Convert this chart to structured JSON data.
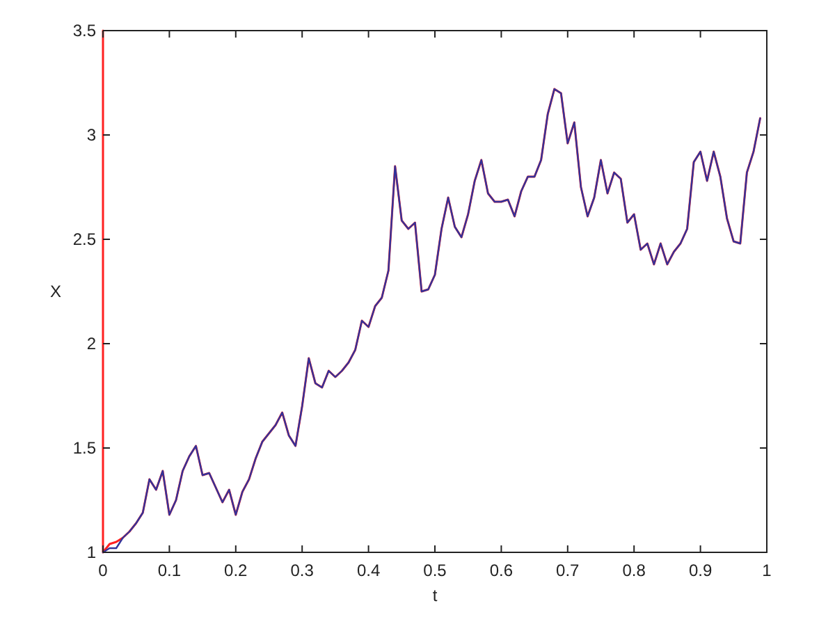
{
  "chart_data": {
    "type": "line",
    "xlabel": "t",
    "ylabel": "X",
    "x": [
      0,
      0.01,
      0.02,
      0.03,
      0.04,
      0.05,
      0.06,
      0.07,
      0.08,
      0.09,
      0.1,
      0.11,
      0.12,
      0.13,
      0.14,
      0.15,
      0.16,
      0.17,
      0.18,
      0.19,
      0.2,
      0.21,
      0.22,
      0.23,
      0.24,
      0.25,
      0.26,
      0.27,
      0.28,
      0.29,
      0.3,
      0.31,
      0.32,
      0.33,
      0.34,
      0.35,
      0.36,
      0.37,
      0.38,
      0.39,
      0.4,
      0.41,
      0.42,
      0.43,
      0.44,
      0.45,
      0.46,
      0.47,
      0.48,
      0.49,
      0.5,
      0.51,
      0.52,
      0.53,
      0.54,
      0.55,
      0.56,
      0.57,
      0.58,
      0.59,
      0.6,
      0.61,
      0.62,
      0.63,
      0.64,
      0.65,
      0.66,
      0.67,
      0.68,
      0.69,
      0.7,
      0.71,
      0.72,
      0.73,
      0.74,
      0.75,
      0.76,
      0.77,
      0.78,
      0.79,
      0.8,
      0.81,
      0.82,
      0.83,
      0.84,
      0.85,
      0.86,
      0.87,
      0.88,
      0.89,
      0.9,
      0.91,
      0.92,
      0.93,
      0.94,
      0.95,
      0.96,
      0.97,
      0.98,
      0.99
    ],
    "series": [
      {
        "color": "#ff2020",
        "x": [
          0,
          0,
          0.01,
          0.02,
          0.03,
          0.04,
          0.05,
          0.06,
          0.07,
          0.08,
          0.09,
          0.1,
          0.11,
          0.12,
          0.13,
          0.14,
          0.15,
          0.16,
          0.17,
          0.18,
          0.19,
          0.2,
          0.21,
          0.22,
          0.23,
          0.24,
          0.25,
          0.26,
          0.27,
          0.28,
          0.29,
          0.3,
          0.31,
          0.32,
          0.33,
          0.34,
          0.35,
          0.36,
          0.37,
          0.38,
          0.39,
          0.4,
          0.41,
          0.42,
          0.43,
          0.44,
          0.45,
          0.46,
          0.47,
          0.48,
          0.49,
          0.5,
          0.51,
          0.52,
          0.53,
          0.54,
          0.55,
          0.56,
          0.57,
          0.58,
          0.59,
          0.6,
          0.61,
          0.62,
          0.63,
          0.64,
          0.65,
          0.66,
          0.67,
          0.68,
          0.69,
          0.7,
          0.71,
          0.72,
          0.73,
          0.74,
          0.75,
          0.76,
          0.77,
          0.78,
          0.79,
          0.8,
          0.81,
          0.82,
          0.83,
          0.84,
          0.85,
          0.86,
          0.87,
          0.88,
          0.89,
          0.9,
          0.91,
          0.92,
          0.93,
          0.94,
          0.95,
          0.96,
          0.97,
          0.98,
          0.99
        ],
        "values": [
          3.5,
          1.0,
          1.04,
          1.05,
          1.07,
          1.1,
          1.14,
          1.19,
          1.35,
          1.3,
          1.39,
          1.18,
          1.25,
          1.39,
          1.46,
          1.51,
          1.37,
          1.38,
          1.31,
          1.24,
          1.3,
          1.18,
          1.29,
          1.35,
          1.45,
          1.53,
          1.57,
          1.61,
          1.67,
          1.56,
          1.51,
          1.7,
          1.93,
          1.81,
          1.79,
          1.87,
          1.84,
          1.87,
          1.91,
          1.97,
          2.11,
          2.08,
          2.18,
          2.22,
          2.35,
          2.85,
          2.59,
          2.55,
          2.58,
          2.25,
          2.26,
          2.33,
          2.55,
          2.7,
          2.56,
          2.51,
          2.62,
          2.78,
          2.88,
          2.72,
          2.68,
          2.68,
          2.69,
          2.61,
          2.73,
          2.8,
          2.8,
          2.88,
          3.1,
          3.22,
          3.2,
          2.96,
          3.06,
          2.75,
          2.61,
          2.7,
          2.88,
          2.72,
          2.82,
          2.79,
          2.58,
          2.62,
          2.45,
          2.48,
          2.38,
          2.48,
          2.38,
          2.44,
          2.48,
          2.55,
          2.87,
          2.92,
          2.78,
          2.92,
          2.8,
          2.6,
          2.49,
          2.48,
          2.82,
          2.92,
          3.08
        ]
      },
      {
        "color": "#33339a",
        "values": [
          1.0,
          1.02,
          1.02,
          1.07,
          1.1,
          1.14,
          1.19,
          1.35,
          1.3,
          1.39,
          1.18,
          1.25,
          1.39,
          1.46,
          1.51,
          1.37,
          1.38,
          1.31,
          1.24,
          1.3,
          1.18,
          1.29,
          1.35,
          1.45,
          1.53,
          1.57,
          1.61,
          1.67,
          1.56,
          1.51,
          1.7,
          1.93,
          1.81,
          1.79,
          1.87,
          1.84,
          1.87,
          1.91,
          1.97,
          2.11,
          2.08,
          2.18,
          2.22,
          2.35,
          2.85,
          2.59,
          2.55,
          2.58,
          2.25,
          2.26,
          2.33,
          2.55,
          2.7,
          2.56,
          2.51,
          2.62,
          2.78,
          2.88,
          2.72,
          2.68,
          2.68,
          2.69,
          2.61,
          2.73,
          2.8,
          2.8,
          2.88,
          3.1,
          3.22,
          3.2,
          2.96,
          3.06,
          2.75,
          2.61,
          2.7,
          2.88,
          2.72,
          2.82,
          2.79,
          2.58,
          2.62,
          2.45,
          2.48,
          2.38,
          2.48,
          2.38,
          2.44,
          2.48,
          2.55,
          2.87,
          2.92,
          2.78,
          2.92,
          2.8,
          2.6,
          2.49,
          2.48,
          2.82,
          2.92,
          3.08
        ]
      }
    ],
    "xlim": [
      0,
      1
    ],
    "xticks": [
      0,
      0.1,
      0.2,
      0.3,
      0.4,
      0.5,
      0.6,
      0.7,
      0.8,
      0.9,
      1
    ],
    "ylim": [
      1,
      3.5
    ],
    "yticks": [
      1,
      1.5,
      2,
      2.5,
      3,
      3.5
    ]
  }
}
